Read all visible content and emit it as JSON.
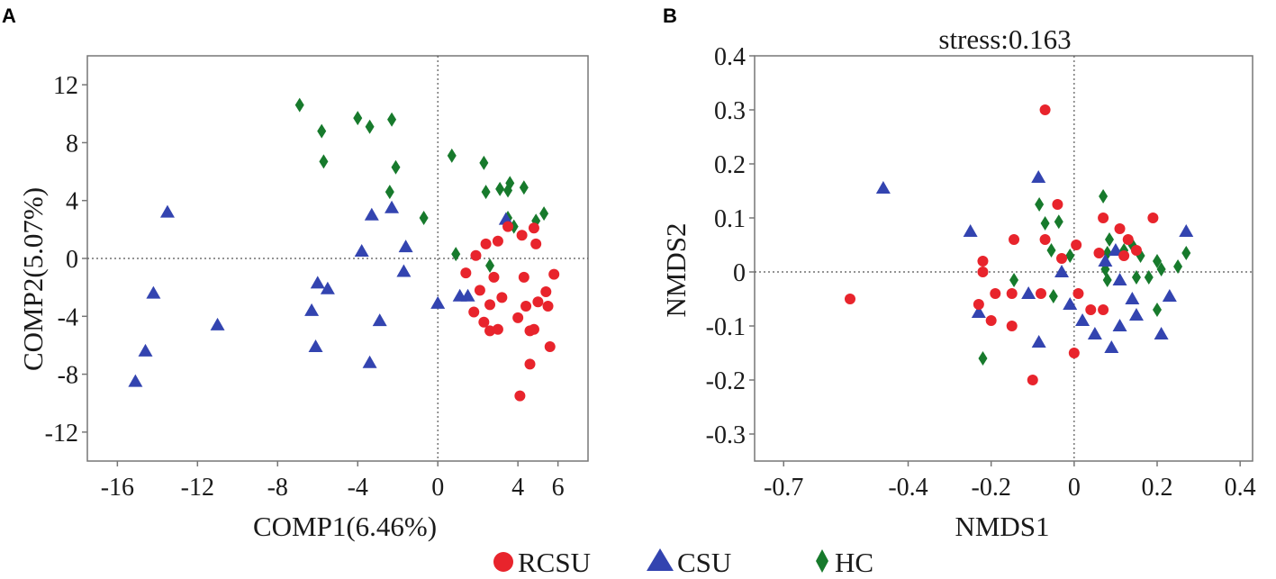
{
  "figure_title": "",
  "colors": {
    "RCSU": "#e8242c",
    "CSU": "#3344b0",
    "HC": "#177a2c"
  },
  "legend": [
    {
      "key": "RCSU",
      "label": "RCSU",
      "marker": "circle"
    },
    {
      "key": "CSU",
      "label": "CSU",
      "marker": "triangle"
    },
    {
      "key": "HC",
      "label": "HC",
      "marker": "diamond"
    }
  ],
  "chart_data": [
    {
      "panel": "A",
      "type": "scatter",
      "title": "",
      "xlabel": "COMP1(6.46%)",
      "ylabel": "COMP2(5.07%)",
      "xlim": [
        -17.5,
        7.5
      ],
      "ylim": [
        -14,
        14
      ],
      "xticks": [
        -16,
        -12,
        -8,
        -4,
        0,
        4,
        6
      ],
      "xtick_labels": [
        "-16",
        "-12",
        "-8",
        "-4",
        "0",
        "4",
        "6"
      ],
      "yticks": [
        12,
        8,
        4,
        0,
        -4,
        -8,
        -12
      ],
      "ytick_labels": [
        "12",
        "8",
        "4",
        "0",
        "-4",
        "-8",
        "-12"
      ],
      "reference_lines": {
        "x": 0,
        "y": 0
      },
      "series": [
        {
          "name": "HC",
          "marker": "diamond",
          "points": [
            [
              -6.9,
              10.6
            ],
            [
              -5.8,
              8.8
            ],
            [
              -5.7,
              6.7
            ],
            [
              -4.0,
              9.7
            ],
            [
              -3.4,
              9.1
            ],
            [
              -2.3,
              9.6
            ],
            [
              -2.1,
              6.3
            ],
            [
              -2.4,
              4.6
            ],
            [
              -0.7,
              2.8
            ],
            [
              0.7,
              7.1
            ],
            [
              0.9,
              0.3
            ],
            [
              2.3,
              6.6
            ],
            [
              2.4,
              4.6
            ],
            [
              3.1,
              4.8
            ],
            [
              3.6,
              5.2
            ],
            [
              3.5,
              2.8
            ],
            [
              3.8,
              2.2
            ],
            [
              4.3,
              4.9
            ],
            [
              4.9,
              2.6
            ],
            [
              5.3,
              3.1
            ],
            [
              2.6,
              -0.5
            ],
            [
              3.5,
              4.7
            ]
          ]
        },
        {
          "name": "CSU",
          "marker": "triangle",
          "points": [
            [
              -13.5,
              3.2
            ],
            [
              -14.2,
              -2.4
            ],
            [
              -14.6,
              -6.4
            ],
            [
              -15.1,
              -8.5
            ],
            [
              -11.0,
              -4.6
            ],
            [
              -6.0,
              -1.7
            ],
            [
              -5.5,
              -2.1
            ],
            [
              -6.3,
              -3.6
            ],
            [
              -6.1,
              -6.1
            ],
            [
              -3.8,
              0.5
            ],
            [
              -3.3,
              3.0
            ],
            [
              -2.3,
              3.5
            ],
            [
              -1.6,
              0.8
            ],
            [
              -1.7,
              -0.9
            ],
            [
              -2.9,
              -4.3
            ],
            [
              -3.4,
              -7.2
            ],
            [
              0.0,
              -3.1
            ],
            [
              1.1,
              -2.6
            ],
            [
              1.5,
              -2.6
            ],
            [
              3.4,
              2.7
            ]
          ]
        },
        {
          "name": "RCSU",
          "marker": "circle",
          "points": [
            [
              2.4,
              1.0
            ],
            [
              3.0,
              1.2
            ],
            [
              3.5,
              2.2
            ],
            [
              4.2,
              1.6
            ],
            [
              4.8,
              2.1
            ],
            [
              4.9,
              1.0
            ],
            [
              1.4,
              -1.0
            ],
            [
              2.8,
              -1.3
            ],
            [
              4.3,
              -1.3
            ],
            [
              5.8,
              -1.1
            ],
            [
              2.1,
              -2.2
            ],
            [
              3.2,
              -2.7
            ],
            [
              5.4,
              -2.3
            ],
            [
              2.6,
              -3.2
            ],
            [
              4.4,
              -3.3
            ],
            [
              5.0,
              -3.0
            ],
            [
              1.8,
              -3.7
            ],
            [
              5.5,
              -3.3
            ],
            [
              2.3,
              -4.4
            ],
            [
              3.0,
              -4.9
            ],
            [
              4.0,
              -4.1
            ],
            [
              2.6,
              -5.0
            ],
            [
              4.6,
              -5.0
            ],
            [
              4.8,
              -4.9
            ],
            [
              5.6,
              -6.1
            ],
            [
              4.6,
              -7.3
            ],
            [
              4.1,
              -9.5
            ],
            [
              1.9,
              0.2
            ]
          ]
        }
      ]
    },
    {
      "panel": "B",
      "type": "scatter",
      "title": "stress:0.163",
      "xlabel": "NMDS1",
      "ylabel": "NMDS2",
      "xlim": [
        -0.77,
        0.43
      ],
      "ylim": [
        -0.35,
        0.4
      ],
      "xticks": [
        -0.7,
        -0.4,
        -0.2,
        0,
        0.2,
        0.4
      ],
      "xtick_labels": [
        "-0.7",
        "-0.4",
        "-0.2",
        "0",
        "0.2",
        "0.4"
      ],
      "yticks": [
        0.4,
        0.3,
        0.2,
        0.1,
        0,
        -0.1,
        -0.2,
        -0.3
      ],
      "ytick_labels": [
        "0.4",
        "0.3",
        "0.2",
        "0.1",
        "0",
        "-0.1",
        "-0.2",
        "-0.3"
      ],
      "reference_lines": {
        "x": 0,
        "y": 0
      },
      "series": [
        {
          "name": "HC",
          "marker": "diamond",
          "points": [
            [
              -0.084,
              0.125
            ],
            [
              -0.07,
              0.09
            ],
            [
              -0.037,
              0.093
            ],
            [
              -0.055,
              0.04
            ],
            [
              -0.01,
              0.03
            ],
            [
              0.07,
              0.14
            ],
            [
              0.085,
              0.06
            ],
            [
              0.08,
              0.035
            ],
            [
              0.12,
              0.04
            ],
            [
              0.16,
              0.03
            ],
            [
              0.14,
              0.05
            ],
            [
              0.2,
              0.02
            ],
            [
              0.21,
              0.005
            ],
            [
              0.27,
              0.035
            ],
            [
              0.25,
              0.01
            ],
            [
              0.18,
              -0.01
            ],
            [
              0.15,
              -0.01
            ],
            [
              0.08,
              -0.015
            ],
            [
              0.2,
              -0.07
            ],
            [
              -0.05,
              -0.045
            ],
            [
              -0.22,
              -0.16
            ],
            [
              0.075,
              0.005
            ],
            [
              -0.145,
              -0.015
            ]
          ]
        },
        {
          "name": "CSU",
          "marker": "triangle",
          "points": [
            [
              -0.46,
              0.155
            ],
            [
              -0.25,
              0.075
            ],
            [
              -0.086,
              0.175
            ],
            [
              -0.23,
              -0.075
            ],
            [
              -0.11,
              -0.04
            ],
            [
              -0.03,
              0.0
            ],
            [
              -0.01,
              -0.06
            ],
            [
              0.02,
              -0.09
            ],
            [
              0.05,
              -0.115
            ],
            [
              0.1,
              0.04
            ],
            [
              0.075,
              0.02
            ],
            [
              0.11,
              -0.015
            ],
            [
              0.14,
              -0.05
            ],
            [
              0.15,
              -0.08
            ],
            [
              0.23,
              -0.045
            ],
            [
              0.27,
              0.075
            ],
            [
              0.21,
              -0.115
            ],
            [
              0.11,
              -0.1
            ],
            [
              0.09,
              -0.14
            ],
            [
              -0.085,
              -0.13
            ]
          ]
        },
        {
          "name": "RCSU",
          "marker": "circle",
          "points": [
            [
              -0.07,
              0.3
            ],
            [
              -0.54,
              -0.05
            ],
            [
              -0.145,
              0.06
            ],
            [
              -0.07,
              0.06
            ],
            [
              -0.04,
              0.125
            ],
            [
              -0.03,
              0.025
            ],
            [
              0.005,
              0.05
            ],
            [
              0.07,
              0.1
            ],
            [
              0.11,
              0.08
            ],
            [
              0.13,
              0.06
            ],
            [
              0.19,
              0.1
            ],
            [
              0.15,
              0.04
            ],
            [
              0.06,
              0.035
            ],
            [
              0.12,
              0.03
            ],
            [
              -0.22,
              0.02
            ],
            [
              -0.22,
              0.0
            ],
            [
              -0.19,
              -0.04
            ],
            [
              -0.15,
              -0.04
            ],
            [
              -0.08,
              -0.04
            ],
            [
              0.01,
              -0.04
            ],
            [
              -0.23,
              -0.06
            ],
            [
              -0.2,
              -0.09
            ],
            [
              -0.15,
              -0.1
            ],
            [
              0.04,
              -0.07
            ],
            [
              0.07,
              -0.07
            ],
            [
              0.0,
              -0.15
            ],
            [
              -0.1,
              -0.2
            ]
          ]
        }
      ]
    }
  ]
}
